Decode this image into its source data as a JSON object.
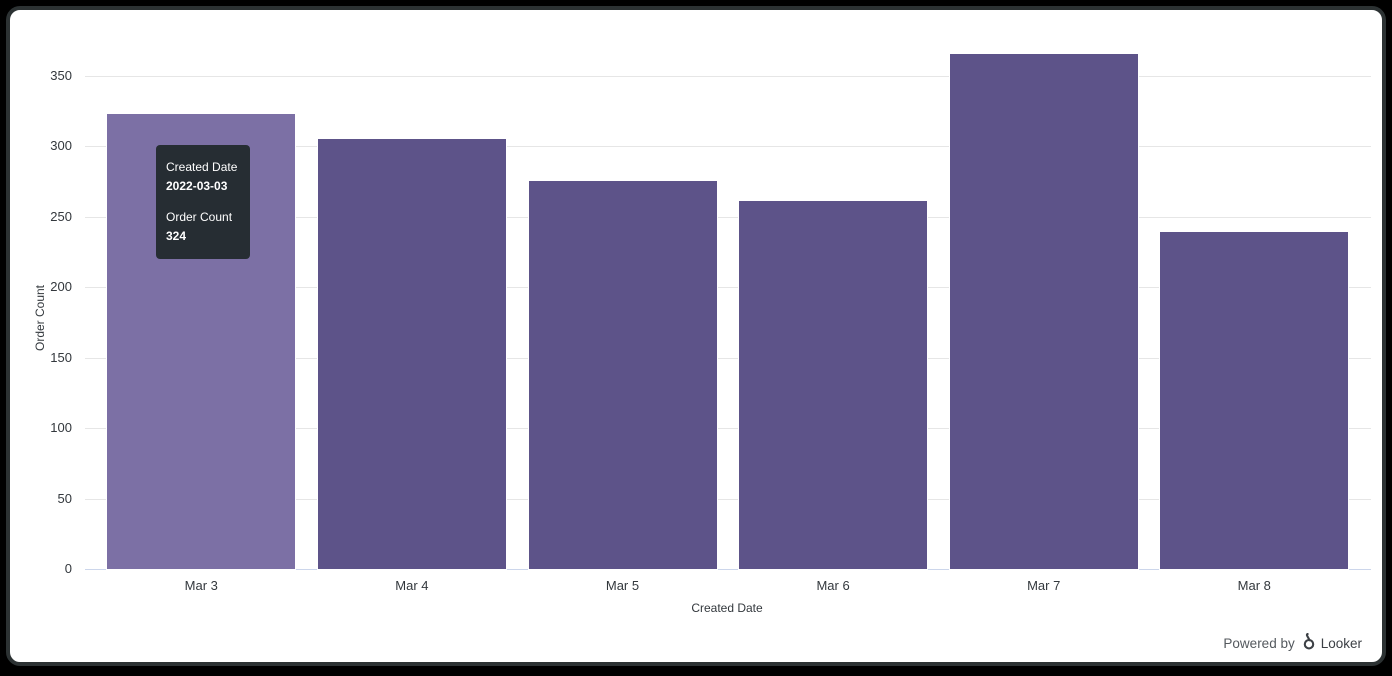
{
  "frame": {
    "background": "#000000",
    "border_color": "#2c3233",
    "card_background": "#ffffff"
  },
  "chart_data": {
    "type": "bar",
    "title": "",
    "categories": [
      "Mar 3",
      "Mar 4",
      "Mar 5",
      "Mar 6",
      "Mar 7",
      "Mar 8"
    ],
    "values": [
      324,
      306,
      276,
      262,
      366,
      240
    ],
    "xlabel": "Created Date",
    "ylabel": "Order Count",
    "ylim": [
      0,
      350
    ],
    "yticks": [
      0,
      50,
      100,
      150,
      200,
      250,
      300,
      350
    ],
    "grid": true,
    "legend": "none",
    "hovered_index": 0,
    "colors": {
      "bar": "#5d5389",
      "bar_hover": "#7c70a5",
      "bar_border": "#ffffff",
      "gridline": "#e6e6e6",
      "axis_line": "#ccd6eb",
      "tick_text": "#33383d"
    }
  },
  "tooltip": {
    "label1": "Created Date",
    "value1": "2022-03-03",
    "label2": "Order Count",
    "value2": "324",
    "background": "#262d33",
    "text_color": "#ffffff"
  },
  "footer": {
    "powered_by": "Powered by",
    "brand": "Looker",
    "logo_icon": "looker-logo"
  }
}
